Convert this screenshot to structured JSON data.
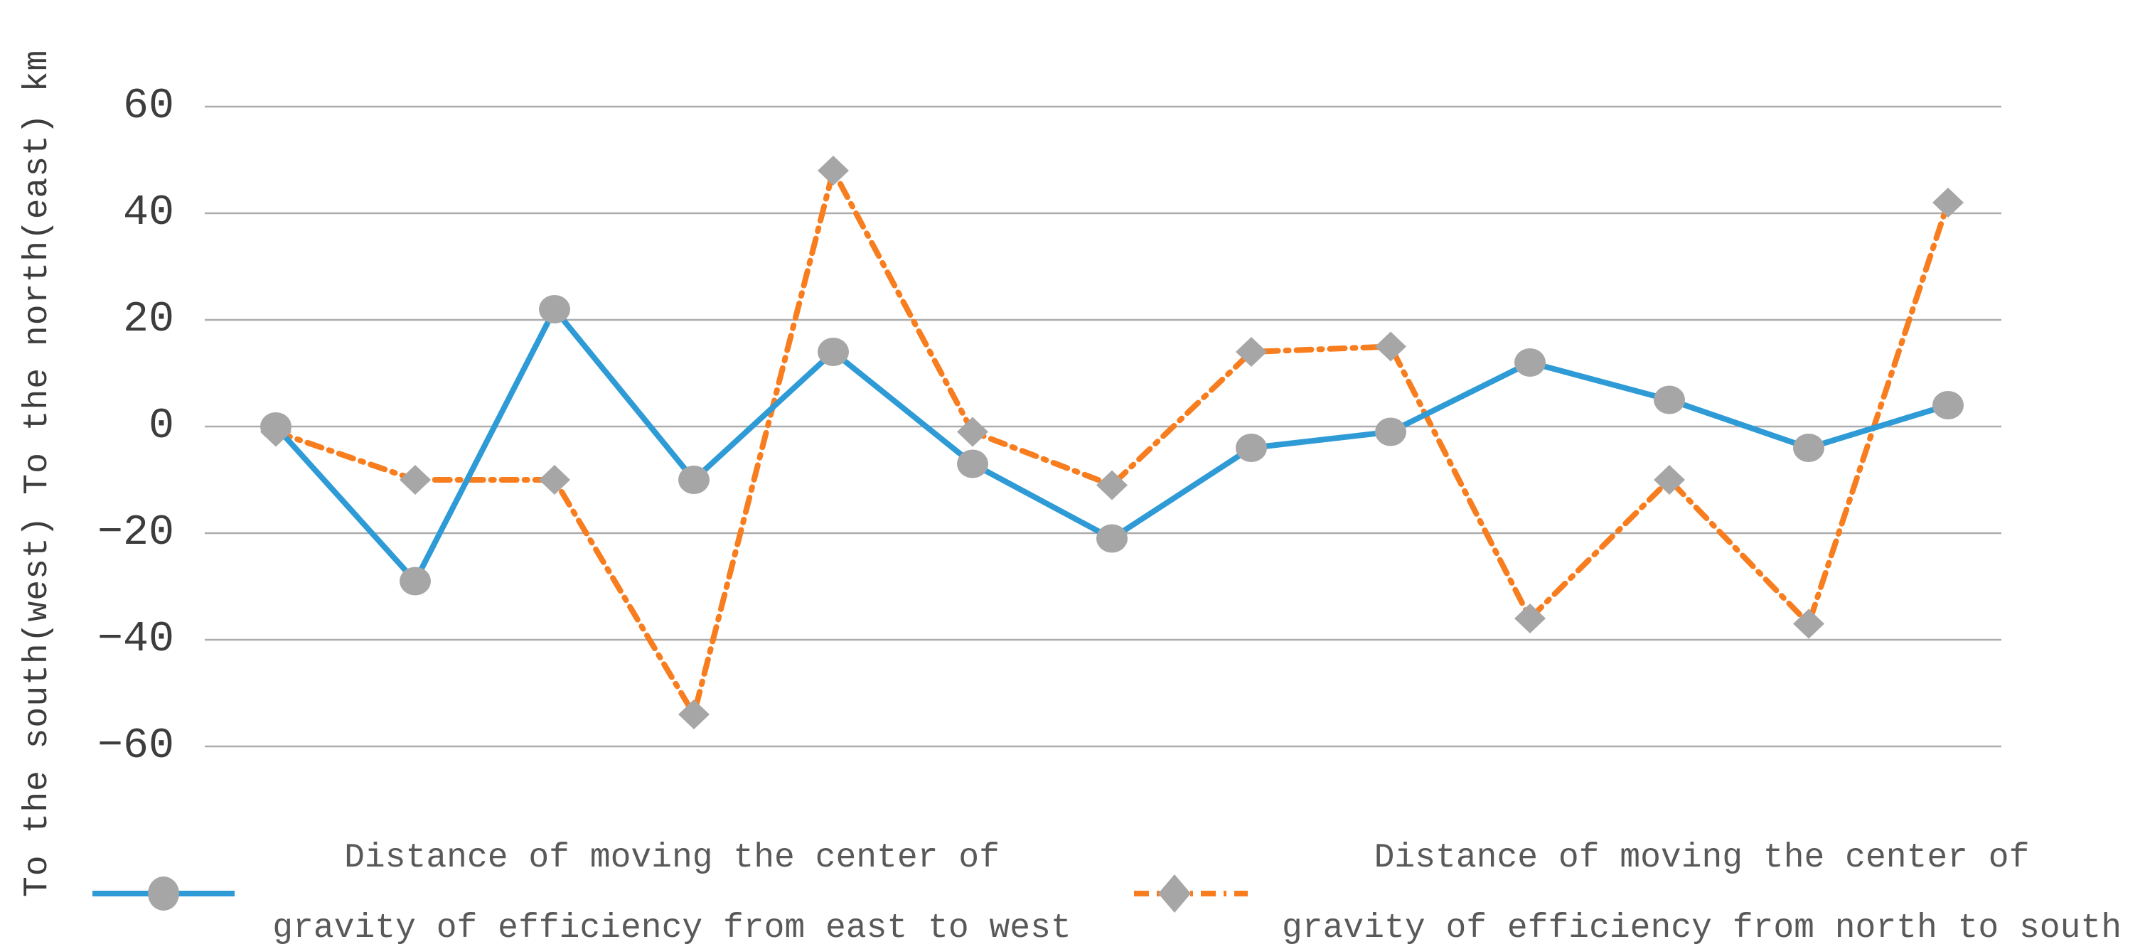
{
  "chart_data": {
    "type": "line",
    "title": "",
    "x_axis": {
      "labels_visible": false,
      "num_points": 13
    },
    "ylabel": "To the south(west) To the north(east) km",
    "ylim": [
      -66.7,
      66.7
    ],
    "yticks": [
      60,
      40,
      20,
      0,
      -20,
      -40,
      -60
    ],
    "ytick_labels": [
      "60",
      "40",
      "20",
      "0",
      "−20",
      "−40",
      "−60"
    ],
    "grid": true,
    "legend_position": "bottom",
    "series": [
      {
        "name": "Distance of moving the center of gravity of efficiency from east to west",
        "legend_lines": [
          "Distance of moving the center of",
          "gravity of efficiency from east to west"
        ],
        "line_style": "solid",
        "line_color": "#2E9BD6",
        "marker": "circle",
        "marker_color": "#A6A6A6",
        "values": [
          0,
          -29,
          22,
          -10,
          14,
          -7,
          -21,
          -4,
          -1,
          12,
          5,
          -4,
          4
        ]
      },
      {
        "name": "Distance of moving the center of gravity of efficiency from north to south",
        "legend_lines": [
          "Distance of moving the center of",
          "gravity of efficiency from north to south"
        ],
        "line_style": "dash-dot",
        "line_color": "#F87D1E",
        "marker": "diamond",
        "marker_color": "#A6A6A6",
        "values": [
          -1,
          -10,
          -10,
          -54,
          48,
          -1,
          -11,
          14,
          15,
          -36,
          -10,
          -37,
          42
        ]
      }
    ]
  },
  "colors": {
    "background": "#FFFFFF",
    "gridline": "#ACACAC",
    "tick_text": "#3D3D3D",
    "legend_text": "#595959"
  }
}
